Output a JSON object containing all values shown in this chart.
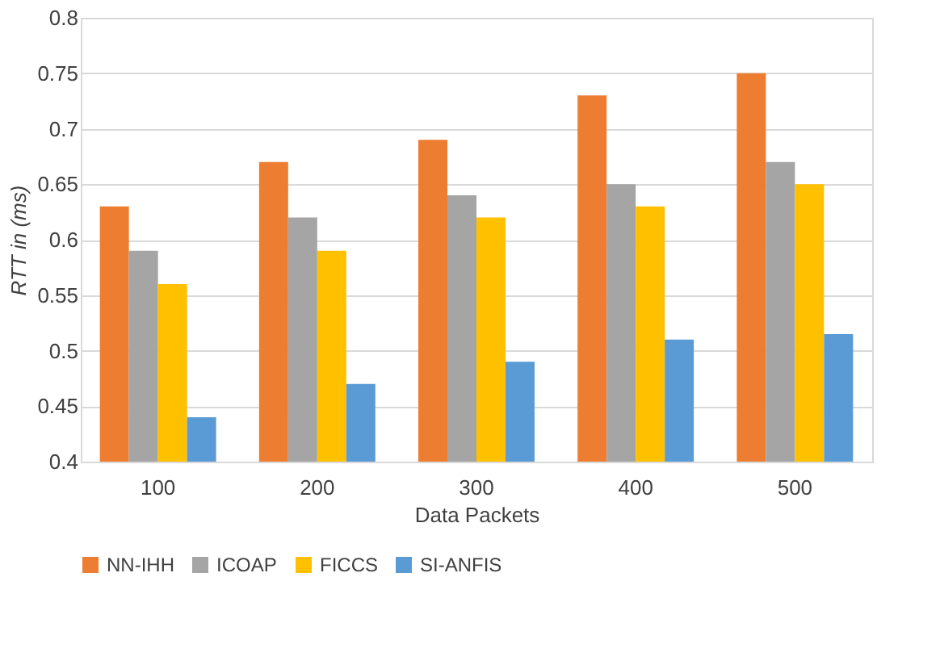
{
  "chart_data": {
    "type": "bar",
    "xlabel": "Data Packets",
    "ylabel": "RTT in (ms)",
    "categories": [
      "100",
      "200",
      "300",
      "400",
      "500"
    ],
    "series": [
      {
        "name": "NN-IHH",
        "color": "#ed7d31",
        "values": [
          0.63,
          0.67,
          0.69,
          0.73,
          0.75
        ]
      },
      {
        "name": "ICOAP",
        "color": "#a5a5a5",
        "values": [
          0.59,
          0.62,
          0.64,
          0.65,
          0.67
        ]
      },
      {
        "name": "FICCS",
        "color": "#ffc000",
        "values": [
          0.56,
          0.59,
          0.62,
          0.63,
          0.65
        ]
      },
      {
        "name": "SI-ANFIS",
        "color": "#5b9bd5",
        "values": [
          0.44,
          0.47,
          0.49,
          0.51,
          0.515
        ]
      }
    ],
    "ylim": [
      0.4,
      0.8
    ],
    "yticks": [
      0.4,
      0.45,
      0.5,
      0.55,
      0.6,
      0.65,
      0.7,
      0.75,
      0.8
    ],
    "grid": "y",
    "legend": "bottom"
  }
}
